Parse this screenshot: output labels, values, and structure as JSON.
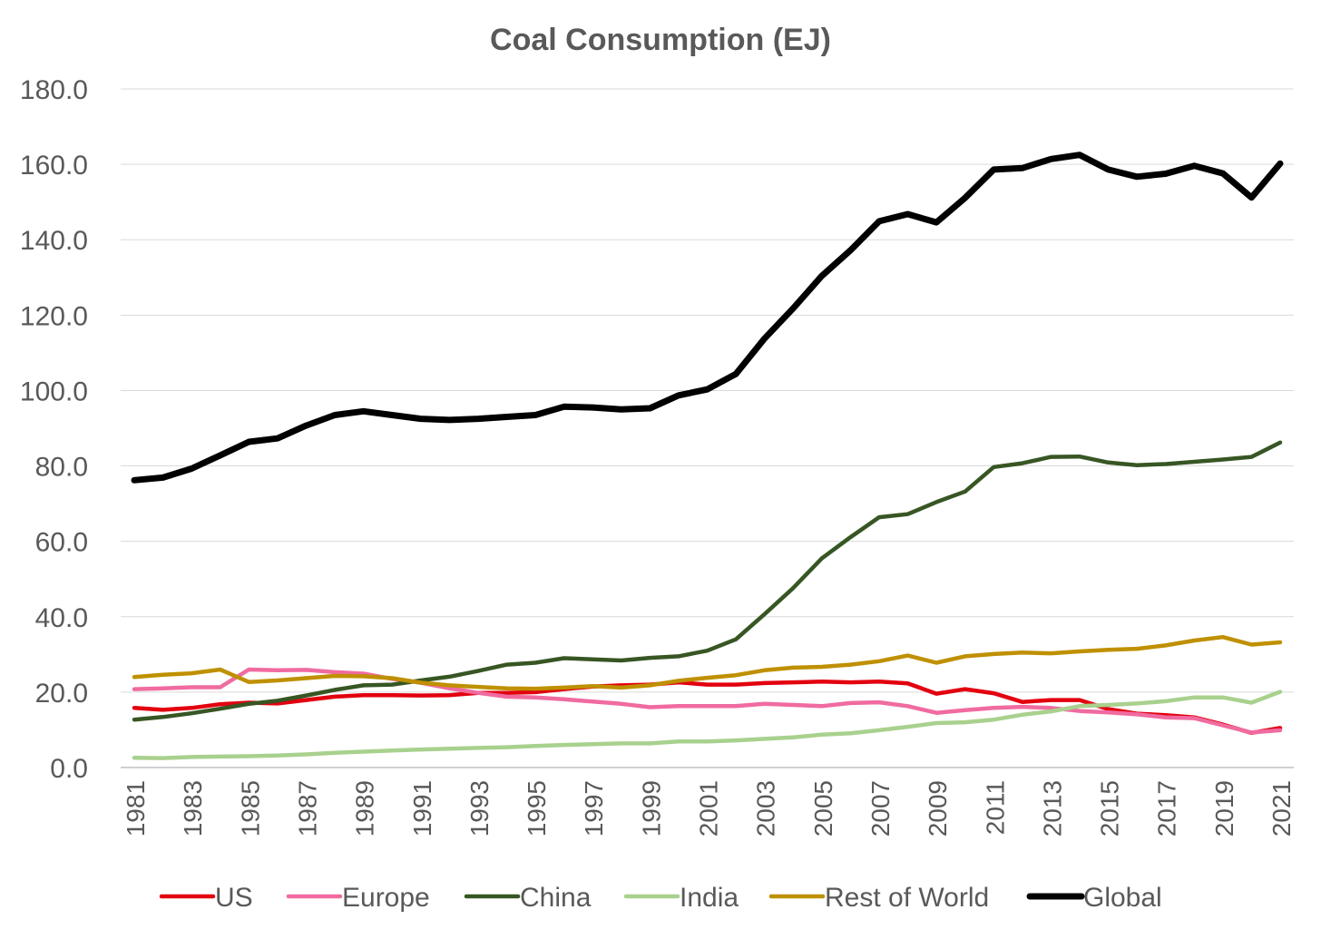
{
  "chart_data": {
    "type": "line",
    "title": "Coal Consumption (EJ)",
    "xlabel": "",
    "ylabel": "",
    "ylim": [
      0,
      180
    ],
    "yticks": [
      "0.0",
      "20.0",
      "40.0",
      "60.0",
      "80.0",
      "100.0",
      "120.0",
      "140.0",
      "160.0",
      "180.0"
    ],
    "x": [
      1981,
      1982,
      1983,
      1984,
      1985,
      1986,
      1987,
      1988,
      1989,
      1990,
      1991,
      1992,
      1993,
      1994,
      1995,
      1996,
      1997,
      1998,
      1999,
      2000,
      2001,
      2002,
      2003,
      2004,
      2005,
      2006,
      2007,
      2008,
      2009,
      2010,
      2011,
      2012,
      2013,
      2014,
      2015,
      2016,
      2017,
      2018,
      2019,
      2020,
      2021
    ],
    "xtick_labels": [
      "1981",
      "1983",
      "1985",
      "1987",
      "1989",
      "1991",
      "1993",
      "1995",
      "1997",
      "1999",
      "2001",
      "2003",
      "2005",
      "2007",
      "2009",
      "2011",
      "2013",
      "2015",
      "2017",
      "2019",
      "2021"
    ],
    "grid": "horizontal",
    "legend_position": "bottom",
    "series": [
      {
        "name": "US",
        "color": "#e3000f",
        "values": [
          15.8,
          15.3,
          15.8,
          16.8,
          17.2,
          17.0,
          17.9,
          18.8,
          19.2,
          19.2,
          19.1,
          19.2,
          19.8,
          19.8,
          20.0,
          20.8,
          21.5,
          21.8,
          22.0,
          22.6,
          22.0,
          22.0,
          22.4,
          22.6,
          22.8,
          22.6,
          22.8,
          22.3,
          19.6,
          20.8,
          19.7,
          17.4,
          17.9,
          17.9,
          15.5,
          14.3,
          13.9,
          13.3,
          11.4,
          9.2,
          10.5
        ]
      },
      {
        "name": "Europe",
        "color": "#f06ba0",
        "values": [
          20.8,
          21.0,
          21.3,
          21.3,
          26.0,
          25.8,
          25.9,
          25.3,
          24.9,
          23.5,
          22.5,
          21.0,
          19.8,
          18.8,
          18.6,
          18.1,
          17.5,
          16.9,
          16.0,
          16.3,
          16.3,
          16.3,
          16.9,
          16.6,
          16.3,
          17.1,
          17.3,
          16.3,
          14.5,
          15.2,
          15.8,
          16.1,
          15.8,
          15.0,
          14.6,
          14.1,
          13.3,
          13.1,
          11.2,
          9.3,
          9.9
        ]
      },
      {
        "name": "China",
        "color": "#375623",
        "values": [
          12.7,
          13.4,
          14.4,
          15.6,
          16.9,
          17.7,
          19.1,
          20.6,
          21.8,
          22.0,
          23.1,
          24.1,
          25.6,
          27.3,
          27.8,
          29.0,
          28.7,
          28.4,
          29.1,
          29.5,
          31.0,
          34.0,
          40.7,
          47.6,
          55.5,
          61.1,
          66.4,
          67.2,
          70.4,
          73.2,
          79.7,
          80.7,
          82.4,
          82.5,
          80.9,
          80.2,
          80.5,
          81.1,
          81.7,
          82.4,
          86.2
        ]
      },
      {
        "name": "India",
        "color": "#a9d18e",
        "values": [
          2.6,
          2.5,
          2.8,
          2.9,
          3.0,
          3.2,
          3.5,
          3.9,
          4.2,
          4.5,
          4.8,
          5.0,
          5.2,
          5.4,
          5.7,
          6.0,
          6.2,
          6.4,
          6.4,
          6.9,
          6.9,
          7.2,
          7.6,
          8.0,
          8.7,
          9.1,
          9.9,
          10.8,
          11.8,
          12.0,
          12.7,
          14.0,
          14.9,
          16.3,
          16.6,
          17.0,
          17.6,
          18.6,
          18.6,
          17.2,
          20.1
        ]
      },
      {
        "name": "Rest of World",
        "color": "#bf9000",
        "values": [
          24.0,
          24.6,
          25.0,
          26.0,
          22.7,
          23.1,
          23.7,
          24.3,
          24.2,
          23.7,
          22.5,
          21.8,
          21.4,
          21.0,
          20.9,
          21.2,
          21.6,
          21.2,
          21.8,
          23.0,
          23.8,
          24.5,
          25.8,
          26.5,
          26.7,
          27.3,
          28.2,
          29.7,
          27.8,
          29.5,
          30.1,
          30.5,
          30.3,
          30.8,
          31.2,
          31.5,
          32.4,
          33.7,
          34.6,
          32.6,
          33.2
        ]
      },
      {
        "name": "Global",
        "color": "#000000",
        "values": [
          76.2,
          76.9,
          79.3,
          82.8,
          86.4,
          87.3,
          90.7,
          93.5,
          94.5,
          93.5,
          92.5,
          92.2,
          92.5,
          93.0,
          93.5,
          95.7,
          95.5,
          95.0,
          95.3,
          98.7,
          100.3,
          104.4,
          113.8,
          121.8,
          130.4,
          137.2,
          144.9,
          146.8,
          144.6,
          151.1,
          158.6,
          159.0,
          161.4,
          162.5,
          158.6,
          156.7,
          157.5,
          159.6,
          157.6,
          151.2,
          160.2
        ]
      }
    ]
  }
}
